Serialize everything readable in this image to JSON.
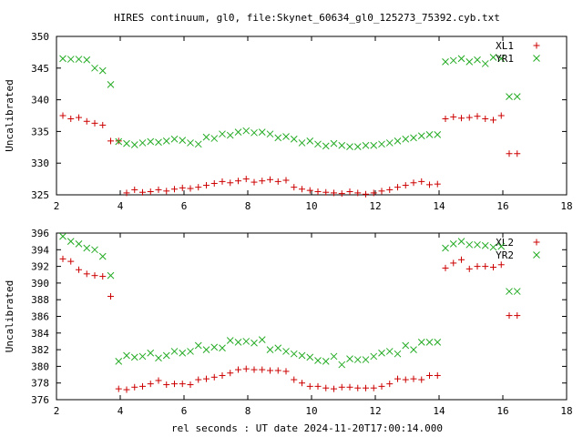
{
  "title": "HIRES continuum, gl0, file:Skynet_60634_gl0_125273_75392.cyb.txt",
  "footer_xlabel": "rel seconds : UT date 2024-11-20T17:00:14.000",
  "colors": {
    "red": "#cc0000",
    "green": "#22aa22",
    "axis": "#000000",
    "grid": "#888888"
  },
  "chart_data": [
    {
      "type": "scatter",
      "ylabel": "Uncalibrated",
      "xlim": [
        2,
        18
      ],
      "ylim": [
        325,
        350
      ],
      "xticks": [
        2,
        4,
        6,
        8,
        10,
        12,
        14,
        16,
        18
      ],
      "yticks": [
        325,
        330,
        335,
        340,
        345,
        350
      ],
      "legend_position": "top-right",
      "series": [
        {
          "name": "XL1",
          "marker": "plus",
          "color": "#cc0000",
          "x": [
            2.2,
            2.45,
            2.7,
            2.95,
            3.2,
            3.45,
            3.7,
            3.95,
            4.2,
            4.45,
            4.7,
            4.95,
            5.2,
            5.45,
            5.7,
            5.95,
            6.2,
            6.45,
            6.7,
            6.95,
            7.2,
            7.45,
            7.7,
            7.95,
            8.2,
            8.45,
            8.7,
            8.95,
            9.2,
            9.45,
            9.7,
            9.95,
            10.2,
            10.45,
            10.7,
            10.95,
            11.2,
            11.45,
            11.7,
            11.95,
            12.2,
            12.45,
            12.7,
            12.95,
            13.2,
            13.45,
            13.7,
            13.95,
            14.2,
            14.45,
            14.7,
            14.95,
            15.2,
            15.45,
            15.7,
            15.95,
            16.2,
            16.45
          ],
          "y": [
            337.5,
            337.0,
            337.2,
            336.6,
            336.3,
            336.0,
            333.5,
            333.5,
            325.3,
            325.8,
            325.4,
            325.5,
            325.8,
            325.6,
            325.9,
            326.1,
            326.0,
            326.2,
            326.5,
            326.8,
            327.1,
            326.9,
            327.2,
            327.5,
            327.0,
            327.2,
            327.4,
            327.1,
            327.3,
            326.2,
            325.9,
            325.7,
            325.5,
            325.4,
            325.3,
            325.2,
            325.5,
            325.3,
            325.1,
            325.3,
            325.6,
            325.8,
            326.2,
            326.5,
            326.9,
            327.1,
            326.6,
            326.7,
            337.0,
            337.3,
            337.1,
            337.2,
            337.4,
            337.0,
            336.8,
            337.5,
            331.5,
            331.5
          ]
        },
        {
          "name": "YR1",
          "marker": "cross",
          "color": "#22aa22",
          "x": [
            2.2,
            2.45,
            2.7,
            2.95,
            3.2,
            3.45,
            3.7,
            3.95,
            4.2,
            4.45,
            4.7,
            4.95,
            5.2,
            5.45,
            5.7,
            5.95,
            6.2,
            6.45,
            6.7,
            6.95,
            7.2,
            7.45,
            7.7,
            7.95,
            8.2,
            8.45,
            8.7,
            8.95,
            9.2,
            9.45,
            9.7,
            9.95,
            10.2,
            10.45,
            10.7,
            10.95,
            11.2,
            11.45,
            11.7,
            11.95,
            12.2,
            12.45,
            12.7,
            12.95,
            13.2,
            13.45,
            13.7,
            13.95,
            14.2,
            14.45,
            14.7,
            14.95,
            15.2,
            15.45,
            15.7,
            15.95,
            16.2,
            16.45
          ],
          "y": [
            346.5,
            346.4,
            346.4,
            346.3,
            345.0,
            344.6,
            342.4,
            333.4,
            333.1,
            332.9,
            333.2,
            333.4,
            333.3,
            333.5,
            333.8,
            333.6,
            333.2,
            333.0,
            334.1,
            333.9,
            334.6,
            334.4,
            334.9,
            335.1,
            334.8,
            334.9,
            334.6,
            334.0,
            334.2,
            333.8,
            333.2,
            333.5,
            333.0,
            332.7,
            333.1,
            332.8,
            332.6,
            332.6,
            332.8,
            332.8,
            333.0,
            333.2,
            333.5,
            333.8,
            334.0,
            334.3,
            334.5,
            334.5,
            346.0,
            346.2,
            346.5,
            346.0,
            346.3,
            345.7,
            346.7,
            346.5,
            340.5,
            340.5
          ]
        }
      ]
    },
    {
      "type": "scatter",
      "ylabel": "Uncalibrated",
      "xlabel": "rel seconds : UT date 2024-11-20T17:00:14.000",
      "xlim": [
        2,
        18
      ],
      "ylim": [
        376,
        396
      ],
      "xticks": [
        2,
        4,
        6,
        8,
        10,
        12,
        14,
        16,
        18
      ],
      "yticks": [
        376,
        378,
        380,
        382,
        384,
        386,
        388,
        390,
        392,
        394,
        396
      ],
      "legend_position": "top-right",
      "series": [
        {
          "name": "XL2",
          "marker": "plus",
          "color": "#cc0000",
          "x": [
            2.2,
            2.45,
            2.7,
            2.95,
            3.2,
            3.45,
            3.7,
            3.95,
            4.2,
            4.45,
            4.7,
            4.95,
            5.2,
            5.45,
            5.7,
            5.95,
            6.2,
            6.45,
            6.7,
            6.95,
            7.2,
            7.45,
            7.7,
            7.95,
            8.2,
            8.45,
            8.7,
            8.95,
            9.2,
            9.45,
            9.7,
            9.95,
            10.2,
            10.45,
            10.7,
            10.95,
            11.2,
            11.45,
            11.7,
            11.95,
            12.2,
            12.45,
            12.7,
            12.95,
            13.2,
            13.45,
            13.7,
            13.95,
            14.2,
            14.45,
            14.7,
            14.95,
            15.2,
            15.45,
            15.7,
            15.95,
            16.2,
            16.45
          ],
          "y": [
            392.9,
            392.6,
            391.6,
            391.1,
            390.9,
            390.8,
            388.4,
            377.3,
            377.2,
            377.5,
            377.6,
            377.9,
            378.3,
            377.8,
            377.9,
            377.9,
            377.8,
            378.4,
            378.5,
            378.7,
            378.9,
            379.2,
            379.6,
            379.7,
            379.6,
            379.6,
            379.5,
            379.5,
            379.4,
            378.4,
            378.0,
            377.6,
            377.6,
            377.4,
            377.3,
            377.5,
            377.5,
            377.4,
            377.4,
            377.4,
            377.6,
            377.9,
            378.5,
            378.4,
            378.5,
            378.4,
            378.9,
            378.9,
            391.8,
            392.4,
            392.8,
            391.7,
            392.0,
            392.0,
            391.9,
            392.2,
            386.1,
            386.1
          ]
        },
        {
          "name": "YR2",
          "marker": "cross",
          "color": "#22aa22",
          "x": [
            2.2,
            2.45,
            2.7,
            2.95,
            3.2,
            3.45,
            3.7,
            3.95,
            4.2,
            4.45,
            4.7,
            4.95,
            5.2,
            5.45,
            5.7,
            5.95,
            6.2,
            6.45,
            6.7,
            6.95,
            7.2,
            7.45,
            7.7,
            7.95,
            8.2,
            8.45,
            8.7,
            8.95,
            9.2,
            9.45,
            9.7,
            9.95,
            10.2,
            10.45,
            10.7,
            10.95,
            11.2,
            11.45,
            11.7,
            11.95,
            12.2,
            12.45,
            12.7,
            12.95,
            13.2,
            13.45,
            13.7,
            13.95,
            14.2,
            14.45,
            14.7,
            14.95,
            15.2,
            15.45,
            15.7,
            15.95,
            16.2,
            16.45
          ],
          "y": [
            395.6,
            395.0,
            394.7,
            394.2,
            394.0,
            393.2,
            390.9,
            380.6,
            381.3,
            381.1,
            381.2,
            381.6,
            381.0,
            381.3,
            381.8,
            381.6,
            381.8,
            382.5,
            382.0,
            382.3,
            382.2,
            383.1,
            382.9,
            383.0,
            382.8,
            383.2,
            382.0,
            382.2,
            381.8,
            381.5,
            381.3,
            381.1,
            380.7,
            380.6,
            381.2,
            380.2,
            380.9,
            380.8,
            380.8,
            381.2,
            381.6,
            381.8,
            381.5,
            382.5,
            382.0,
            382.9,
            382.9,
            382.9,
            394.2,
            394.7,
            395.0,
            394.6,
            394.6,
            394.5,
            394.3,
            394.4,
            389.0,
            389.0
          ]
        }
      ]
    }
  ]
}
